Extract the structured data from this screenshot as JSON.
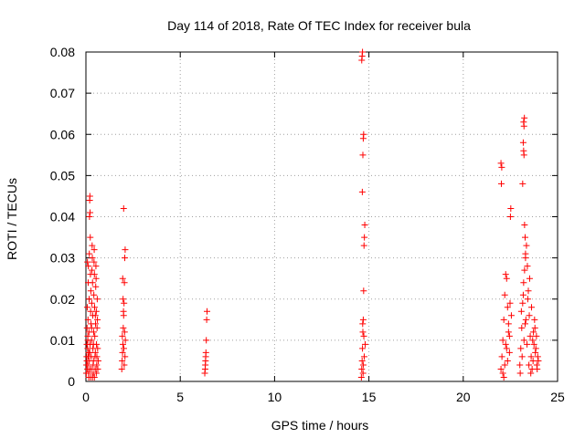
{
  "chart_data": {
    "type": "scatter",
    "title": "Day 114 of 2018, Rate Of TEC Index for receiver bula",
    "xlabel": "GPS time / hours",
    "ylabel": "ROTI / TECUs",
    "xlim": [
      0,
      25
    ],
    "ylim": [
      0,
      0.08
    ],
    "x_ticks": [
      0,
      5,
      10,
      15,
      20,
      25
    ],
    "y_ticks": [
      0,
      0.01,
      0.02,
      0.03,
      0.04,
      0.05,
      0.06,
      0.07,
      0.08
    ],
    "x_tick_labels": [
      "0",
      "5",
      "10",
      "15",
      "20",
      "25"
    ],
    "y_tick_labels": [
      "0",
      "0.01",
      "0.02",
      "0.03",
      "0.04",
      "0.05",
      "0.06",
      "0.07",
      "0.08"
    ],
    "grid": true,
    "marker": "plus",
    "marker_color": "#ff0000",
    "series": [
      {
        "points": [
          [
            0.02,
            0.002
          ],
          [
            0.03,
            0.004
          ],
          [
            0.04,
            0.006
          ],
          [
            0.05,
            0.009
          ],
          [
            0.06,
            0.013
          ],
          [
            0.07,
            0.018
          ],
          [
            0.08,
            0.029
          ],
          [
            0.05,
            0.005
          ],
          [
            0.08,
            0.003
          ],
          [
            0.09,
            0.008
          ],
          [
            0.1,
            0.011
          ],
          [
            0.11,
            0.015
          ],
          [
            0.12,
            0.024
          ],
          [
            0.13,
            0.028
          ],
          [
            0.1,
            0.004
          ],
          [
            0.12,
            0.006
          ],
          [
            0.14,
            0.002
          ],
          [
            0.15,
            0.007
          ],
          [
            0.16,
            0.012
          ],
          [
            0.17,
            0.02
          ],
          [
            0.18,
            0.031
          ],
          [
            0.19,
            0.04
          ],
          [
            0.2,
            0.044
          ],
          [
            0.21,
            0.045
          ],
          [
            0.22,
            0.041
          ],
          [
            0.23,
            0.035
          ],
          [
            0.24,
            0.026
          ],
          [
            0.18,
            0.005
          ],
          [
            0.2,
            0.003
          ],
          [
            0.22,
            0.009
          ],
          [
            0.25,
            0.017
          ],
          [
            0.26,
            0.022
          ],
          [
            0.27,
            0.014
          ],
          [
            0.28,
            0.006
          ],
          [
            0.29,
            0.003
          ],
          [
            0.3,
            0.01
          ],
          [
            0.31,
            0.019
          ],
          [
            0.32,
            0.027
          ],
          [
            0.33,
            0.033
          ],
          [
            0.34,
            0.03
          ],
          [
            0.35,
            0.024
          ],
          [
            0.36,
            0.016
          ],
          [
            0.37,
            0.008
          ],
          [
            0.38,
            0.004
          ],
          [
            0.39,
            0.002
          ],
          [
            0.4,
            0.005
          ],
          [
            0.41,
            0.012
          ],
          [
            0.42,
            0.021
          ],
          [
            0.43,
            0.029
          ],
          [
            0.44,
            0.032
          ],
          [
            0.45,
            0.026
          ],
          [
            0.46,
            0.018
          ],
          [
            0.47,
            0.011
          ],
          [
            0.48,
            0.006
          ],
          [
            0.49,
            0.003
          ],
          [
            0.5,
            0.007
          ],
          [
            0.51,
            0.014
          ],
          [
            0.52,
            0.023
          ],
          [
            0.53,
            0.028
          ],
          [
            0.54,
            0.025
          ],
          [
            0.55,
            0.017
          ],
          [
            0.56,
            0.009
          ],
          [
            0.57,
            0.004
          ],
          [
            0.58,
            0.006
          ],
          [
            0.59,
            0.013
          ],
          [
            0.6,
            0.02
          ],
          [
            0.61,
            0.015
          ],
          [
            0.62,
            0.008
          ],
          [
            0.63,
            0.003
          ],
          [
            0.65,
            0.005
          ],
          [
            0.15,
            0.001
          ],
          [
            0.25,
            0.001
          ],
          [
            0.35,
            0.001
          ],
          [
            0.45,
            0.001
          ],
          [
            0.55,
            0.002
          ],
          [
            0.3,
            0.013
          ],
          [
            0.4,
            0.009
          ],
          [
            0.5,
            0.016
          ],
          [
            0.2,
            0.007
          ],
          [
            0.1,
            0.01
          ],
          [
            1.9,
            0.003
          ],
          [
            1.92,
            0.005
          ],
          [
            1.94,
            0.007
          ],
          [
            1.96,
            0.009
          ],
          [
            1.98,
            0.013
          ],
          [
            2.0,
            0.016
          ],
          [
            2.02,
            0.019
          ],
          [
            2.04,
            0.024
          ],
          [
            2.06,
            0.03
          ],
          [
            2.08,
            0.032
          ],
          [
            2.0,
            0.042
          ],
          [
            1.95,
            0.025
          ],
          [
            2.05,
            0.012
          ],
          [
            2.07,
            0.006
          ],
          [
            1.93,
            0.011
          ],
          [
            2.01,
            0.008
          ],
          [
            2.03,
            0.004
          ],
          [
            1.97,
            0.02
          ],
          [
            1.99,
            0.017
          ],
          [
            2.09,
            0.01
          ],
          [
            6.3,
            0.002
          ],
          [
            6.32,
            0.003
          ],
          [
            6.34,
            0.005
          ],
          [
            6.36,
            0.007
          ],
          [
            6.38,
            0.01
          ],
          [
            6.4,
            0.015
          ],
          [
            6.42,
            0.017
          ],
          [
            6.35,
            0.006
          ],
          [
            6.33,
            0.004
          ],
          [
            14.6,
            0.001
          ],
          [
            14.62,
            0.003
          ],
          [
            14.64,
            0.005
          ],
          [
            14.66,
            0.008
          ],
          [
            14.68,
            0.012
          ],
          [
            14.7,
            0.015
          ],
          [
            14.72,
            0.022
          ],
          [
            14.74,
            0.033
          ],
          [
            14.76,
            0.035
          ],
          [
            14.78,
            0.038
          ],
          [
            14.65,
            0.046
          ],
          [
            14.68,
            0.055
          ],
          [
            14.7,
            0.059
          ],
          [
            14.72,
            0.06
          ],
          [
            14.62,
            0.078
          ],
          [
            14.64,
            0.079
          ],
          [
            14.66,
            0.08
          ],
          [
            14.7,
            0.004
          ],
          [
            14.75,
            0.006
          ],
          [
            14.8,
            0.009
          ],
          [
            14.67,
            0.014
          ],
          [
            14.73,
            0.011
          ],
          [
            14.69,
            0.002
          ],
          [
            22.0,
            0.003
          ],
          [
            22.05,
            0.006
          ],
          [
            22.1,
            0.01
          ],
          [
            22.15,
            0.015
          ],
          [
            22.2,
            0.021
          ],
          [
            22.25,
            0.026
          ],
          [
            22.3,
            0.025
          ],
          [
            22.35,
            0.018
          ],
          [
            22.4,
            0.012
          ],
          [
            22.45,
            0.007
          ],
          [
            22.0,
            0.053
          ],
          [
            22.02,
            0.048
          ],
          [
            22.04,
            0.052
          ],
          [
            22.5,
            0.04
          ],
          [
            22.52,
            0.042
          ],
          [
            22.1,
            0.002
          ],
          [
            22.2,
            0.004
          ],
          [
            22.3,
            0.008
          ],
          [
            22.4,
            0.014
          ],
          [
            22.48,
            0.019
          ],
          [
            22.15,
            0.001
          ],
          [
            22.25,
            0.009
          ],
          [
            22.35,
            0.005
          ],
          [
            22.45,
            0.011
          ],
          [
            22.55,
            0.016
          ],
          [
            23.0,
            0.004
          ],
          [
            23.05,
            0.008
          ],
          [
            23.1,
            0.013
          ],
          [
            23.15,
            0.019
          ],
          [
            23.2,
            0.024
          ],
          [
            23.25,
            0.027
          ],
          [
            23.3,
            0.03
          ],
          [
            23.35,
            0.033
          ],
          [
            23.4,
            0.028
          ],
          [
            23.45,
            0.022
          ],
          [
            23.5,
            0.016
          ],
          [
            23.55,
            0.011
          ],
          [
            23.6,
            0.006
          ],
          [
            23.65,
            0.003
          ],
          [
            23.7,
            0.005
          ],
          [
            23.75,
            0.009
          ],
          [
            23.8,
            0.013
          ],
          [
            23.85,
            0.008
          ],
          [
            23.9,
            0.004
          ],
          [
            23.95,
            0.006
          ],
          [
            23.2,
            0.063
          ],
          [
            23.22,
            0.062
          ],
          [
            23.24,
            0.064
          ],
          [
            23.18,
            0.058
          ],
          [
            23.2,
            0.056
          ],
          [
            23.22,
            0.055
          ],
          [
            23.15,
            0.048
          ],
          [
            23.25,
            0.038
          ],
          [
            23.28,
            0.035
          ],
          [
            23.3,
            0.031
          ],
          [
            23.02,
            0.002
          ],
          [
            23.12,
            0.006
          ],
          [
            23.22,
            0.01
          ],
          [
            23.32,
            0.015
          ],
          [
            23.42,
            0.02
          ],
          [
            23.52,
            0.025
          ],
          [
            23.62,
            0.018
          ],
          [
            23.72,
            0.012
          ],
          [
            23.82,
            0.007
          ],
          [
            23.92,
            0.003
          ],
          [
            23.08,
            0.017
          ],
          [
            23.18,
            0.021
          ],
          [
            23.28,
            0.014
          ],
          [
            23.38,
            0.009
          ],
          [
            23.48,
            0.004
          ],
          [
            23.58,
            0.002
          ],
          [
            23.68,
            0.01
          ],
          [
            23.78,
            0.015
          ],
          [
            23.88,
            0.011
          ],
          [
            23.98,
            0.005
          ]
        ]
      }
    ]
  }
}
